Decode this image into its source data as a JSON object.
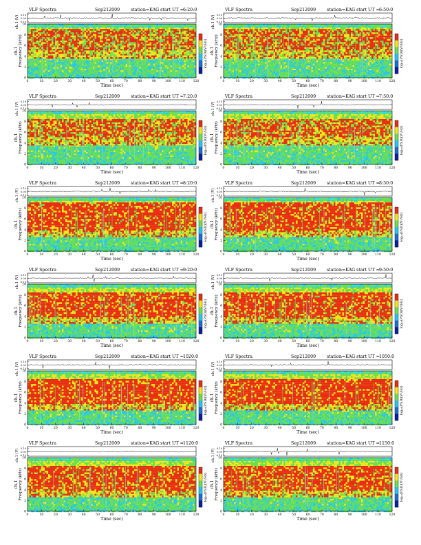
{
  "page": {
    "header_left": "VLF Spectra",
    "header_date": "Sep212009",
    "header_station": "station=KAG",
    "header_start_label": "start  UT =",
    "panel_y_label": "ch.1\nFrequency (kHz)",
    "ch_label": "ch.1 (V)",
    "colorbar_label": "log₁₀(PSD)(V²/Hz)",
    "x_axis_label": "Time (sec)"
  },
  "colors": {
    "spec_low": "#29c7ef",
    "spec_mid": "#6fe04a",
    "spec_high": "#f6e61a",
    "spec_peak": "#e82c15",
    "band_top": "#3ae3d8"
  },
  "chart_data": [
    {
      "type": "heatmap",
      "start_ut": "6:20:0",
      "xlabel": "Time (sec)",
      "ylabel": "Frequency (kHz)",
      "xlim": [
        0,
        120
      ],
      "ylim": [
        0,
        10
      ],
      "x_ticks": [
        0,
        10,
        20,
        30,
        40,
        50,
        60,
        70,
        80,
        90,
        100,
        110,
        120
      ],
      "y_ticks": [
        0,
        2,
        4,
        6,
        8,
        10
      ],
      "ch_ticks": [
        "0.10",
        "0.00",
        "-0.10"
      ],
      "band_peak_khz": [
        5,
        9
      ],
      "high_band_intensity": 0.55
    },
    {
      "type": "heatmap",
      "start_ut": "6:50:0",
      "xlabel": "Time (sec)",
      "ylabel": "Frequency (kHz)",
      "xlim": [
        0,
        120
      ],
      "ylim": [
        0,
        10
      ],
      "x_ticks": [
        0,
        10,
        20,
        30,
        40,
        50,
        60,
        70,
        80,
        90,
        100,
        110,
        120
      ],
      "y_ticks": [
        0,
        2,
        4,
        6,
        8,
        10
      ],
      "ch_ticks": [
        "0.10",
        "0.00",
        "-0.10"
      ],
      "band_peak_khz": [
        5,
        9
      ],
      "high_band_intensity": 0.55
    },
    {
      "type": "heatmap",
      "start_ut": "7:20:0",
      "xlabel": "Time (sec)",
      "ylabel": "Frequency (kHz)",
      "xlim": [
        0,
        120
      ],
      "ylim": [
        0,
        10
      ],
      "x_ticks": [
        0,
        10,
        20,
        30,
        40,
        50,
        60,
        70,
        80,
        90,
        100,
        110,
        120
      ],
      "y_ticks": [
        0,
        2,
        4,
        6,
        8,
        10
      ],
      "ch_ticks": [
        "0.10",
        "0.00",
        "-0.10"
      ],
      "band_peak_khz": [
        5,
        8.5
      ],
      "high_band_intensity": 0.6
    },
    {
      "type": "heatmap",
      "start_ut": "7:50:0",
      "xlabel": "Time (sec)",
      "ylabel": "Frequency (kHz)",
      "xlim": [
        0,
        120
      ],
      "ylim": [
        0,
        10
      ],
      "x_ticks": [
        0,
        10,
        20,
        30,
        40,
        50,
        60,
        70,
        80,
        90,
        100,
        110,
        120
      ],
      "y_ticks": [
        0,
        2,
        4,
        6,
        8,
        10
      ],
      "ch_ticks": [
        "0.10",
        "0.00",
        "-0.10"
      ],
      "band_peak_khz": [
        5,
        8.5
      ],
      "high_band_intensity": 0.6
    },
    {
      "type": "heatmap",
      "start_ut": "8:20:0",
      "xlabel": "Time (sec)",
      "ylabel": "Frequency (kHz)",
      "xlim": [
        0,
        120
      ],
      "ylim": [
        0,
        10
      ],
      "x_ticks": [
        0,
        10,
        20,
        30,
        40,
        50,
        60,
        70,
        80,
        90,
        100,
        110,
        120
      ],
      "y_ticks": [
        0,
        2,
        4,
        6,
        8,
        10
      ],
      "ch_ticks": [
        "0.10",
        "0.00",
        "-0.10"
      ],
      "band_peak_khz": [
        4,
        9
      ],
      "high_band_intensity": 0.75
    },
    {
      "type": "heatmap",
      "start_ut": "8:50:0",
      "xlabel": "Time (sec)",
      "ylabel": "Frequency (kHz)",
      "xlim": [
        0,
        120
      ],
      "ylim": [
        0,
        10
      ],
      "x_ticks": [
        0,
        10,
        20,
        30,
        40,
        50,
        60,
        70,
        80,
        90,
        100,
        110,
        120
      ],
      "y_ticks": [
        0,
        2,
        4,
        6,
        8,
        10
      ],
      "ch_ticks": [
        "0.10",
        "0.00",
        "-0.10"
      ],
      "band_peak_khz": [
        4,
        9
      ],
      "high_band_intensity": 0.75
    },
    {
      "type": "heatmap",
      "start_ut": "9:20:0",
      "xlabel": "Time (sec)",
      "ylabel": "Frequency (kHz)",
      "xlim": [
        0,
        120
      ],
      "ylim": [
        0,
        10
      ],
      "x_ticks": [
        0,
        10,
        20,
        30,
        40,
        50,
        60,
        70,
        80,
        90,
        100,
        110,
        120
      ],
      "y_ticks": [
        0,
        2,
        4,
        6,
        8,
        10
      ],
      "ch_ticks": [
        "0.10",
        "0.00",
        "-0.10"
      ],
      "band_peak_khz": [
        4,
        8.5
      ],
      "high_band_intensity": 0.75
    },
    {
      "type": "heatmap",
      "start_ut": "9:50:0",
      "xlabel": "Time (sec)",
      "ylabel": "Frequency (kHz)",
      "xlim": [
        0,
        120
      ],
      "ylim": [
        0,
        10
      ],
      "x_ticks": [
        0,
        10,
        20,
        30,
        40,
        50,
        60,
        70,
        80,
        90,
        100,
        110,
        120
      ],
      "y_ticks": [
        0,
        2,
        4,
        6,
        8,
        10
      ],
      "ch_ticks": [
        "0.10",
        "0.00",
        "-0.10"
      ],
      "band_peak_khz": [
        4,
        8.5
      ],
      "high_band_intensity": 0.75
    },
    {
      "type": "heatmap",
      "start_ut": "1020:0",
      "xlabel": "Time (sec)",
      "ylabel": "Frequency (kHz)",
      "xlim": [
        0,
        120
      ],
      "ylim": [
        0,
        10
      ],
      "x_ticks": [
        0,
        10,
        20,
        30,
        40,
        50,
        60,
        70,
        80,
        90,
        100,
        110,
        120
      ],
      "y_ticks": [
        0,
        2,
        4,
        6,
        8,
        10
      ],
      "ch_ticks": [
        "0.10",
        "0.00",
        "-0.10"
      ],
      "band_peak_khz": [
        4,
        8.5
      ],
      "high_band_intensity": 0.8
    },
    {
      "type": "heatmap",
      "start_ut": "1050:0",
      "xlabel": "Time (sec)",
      "ylabel": "Frequency (kHz)",
      "xlim": [
        0,
        120
      ],
      "ylim": [
        0,
        10
      ],
      "x_ticks": [
        0,
        10,
        20,
        30,
        40,
        50,
        60,
        70,
        80,
        90,
        100,
        110,
        120
      ],
      "y_ticks": [
        0,
        2,
        4,
        6,
        8,
        10
      ],
      "ch_ticks": [
        "0.10",
        "0.00",
        "-0.10"
      ],
      "band_peak_khz": [
        4,
        8.5
      ],
      "high_band_intensity": 0.8
    },
    {
      "type": "heatmap",
      "start_ut": "1120:0",
      "xlabel": "Time (sec)",
      "ylabel": "Frequency (kHz)",
      "xlim": [
        0,
        120
      ],
      "ylim": [
        0,
        10
      ],
      "x_ticks": [
        0,
        10,
        20,
        30,
        40,
        50,
        60,
        70,
        80,
        90,
        100,
        110,
        120
      ],
      "y_ticks": [
        0,
        2,
        4,
        6,
        8,
        10
      ],
      "ch_ticks": [
        "0.10",
        "0.00",
        "-0.10"
      ],
      "band_peak_khz": [
        4,
        8.5
      ],
      "high_band_intensity": 0.75
    },
    {
      "type": "heatmap",
      "start_ut": "1150:0",
      "xlabel": "Time (sec)",
      "ylabel": "Frequency (kHz)",
      "xlim": [
        0,
        120
      ],
      "ylim": [
        0,
        10
      ],
      "x_ticks": [
        0,
        10,
        20,
        30,
        40,
        50,
        60,
        70,
        80,
        90,
        100,
        110,
        120
      ],
      "y_ticks": [
        0,
        2,
        4,
        6,
        8,
        10
      ],
      "ch_ticks": [
        "0.10",
        "0.00",
        "-0.10"
      ],
      "band_peak_khz": [
        4,
        8.5
      ],
      "high_band_intensity": 0.75
    }
  ]
}
